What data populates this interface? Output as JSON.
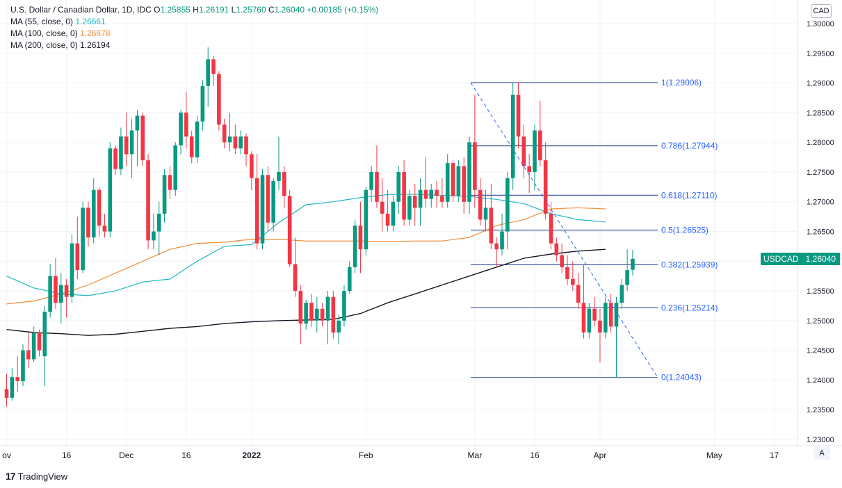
{
  "legend": {
    "title": "U.S. Dollar / Canadian Dollar, 1D, IDC",
    "o_label": "O",
    "o_value": "1.25855",
    "h_label": "H",
    "h_value": "1.26191",
    "l_label": "L",
    "l_value": "1.25760",
    "c_label": "C",
    "c_value": "1.26040",
    "change": "+0.00185 (+0.15%)",
    "ma55_label": "MA (55, close, 0)",
    "ma55_value": "1.26661",
    "ma100_label": "MA (100, close, 0)",
    "ma100_value": "1.26878",
    "ma200_label": "MA (200, close, 0)",
    "ma200_value": "1.26194"
  },
  "currency_button": "CAD",
  "auto_scale_button": "A",
  "brand": "TradingView",
  "price_tag": {
    "symbol": "USDCAD",
    "value": "1.26040"
  },
  "colors": {
    "up": "#089981",
    "down": "#f23645",
    "ma55": "#1cb5c0",
    "ma100": "#f28c35",
    "ma200": "#131722",
    "fib": "#2962ff",
    "fib_text": "#2962ff"
  },
  "chart_data": {
    "type": "candlestick",
    "symbol": "USDCAD",
    "interval": "1D",
    "ylim": [
      1.2285,
      1.3025
    ],
    "y_ticks": [
      "1.30000",
      "1.29500",
      "1.29000",
      "1.28500",
      "1.28000",
      "1.27500",
      "1.27000",
      "1.26500",
      "1.26000",
      "1.25500",
      "1.25000",
      "1.24500",
      "1.24000",
      "1.23500",
      "1.23000"
    ],
    "x_ticks": [
      {
        "label": "ov",
        "index": 0
      },
      {
        "label": "16",
        "index": 11
      },
      {
        "label": "Dec",
        "index": 22
      },
      {
        "label": "16",
        "index": 33
      },
      {
        "label": "2022",
        "index": 45
      },
      {
        "label": "Feb",
        "index": 66
      },
      {
        "label": "Mar",
        "index": 86
      },
      {
        "label": "16",
        "index": 97
      },
      {
        "label": "Apr",
        "index": 109
      },
      {
        "label": "May",
        "index": 130
      },
      {
        "label": "17",
        "index": 141
      }
    ],
    "candles": [
      [
        1.2385,
        1.241,
        1.2355,
        1.237
      ],
      [
        1.237,
        1.242,
        1.2365,
        1.2405
      ],
      [
        1.2405,
        1.244,
        1.238,
        1.2398
      ],
      [
        1.2398,
        1.246,
        1.239,
        1.245
      ],
      [
        1.245,
        1.248,
        1.242,
        1.2435
      ],
      [
        1.2435,
        1.249,
        1.243,
        1.248
      ],
      [
        1.248,
        1.2485,
        1.244,
        1.245
      ],
      [
        1.244,
        1.2525,
        1.239,
        1.2515
      ],
      [
        1.2515,
        1.2595,
        1.2505,
        1.2575
      ],
      [
        1.2575,
        1.2605,
        1.252,
        1.253
      ],
      [
        1.253,
        1.258,
        1.2495,
        1.256
      ],
      [
        1.256,
        1.257,
        1.2505,
        1.254
      ],
      [
        1.254,
        1.2645,
        1.253,
        1.263
      ],
      [
        1.263,
        1.2675,
        1.257,
        1.2585
      ],
      [
        1.2585,
        1.27,
        1.258,
        1.269
      ],
      [
        1.269,
        1.27,
        1.2625,
        1.264
      ],
      [
        1.264,
        1.274,
        1.263,
        1.272
      ],
      [
        1.272,
        1.2725,
        1.264,
        1.266
      ],
      [
        1.266,
        1.268,
        1.264,
        1.265
      ],
      [
        1.265,
        1.28,
        1.264,
        1.279
      ],
      [
        1.279,
        1.2795,
        1.2745,
        1.2755
      ],
      [
        1.2755,
        1.2825,
        1.2745,
        1.281
      ],
      [
        1.281,
        1.285,
        1.276,
        1.278
      ],
      [
        1.278,
        1.284,
        1.274,
        1.282
      ],
      [
        1.282,
        1.2855,
        1.276,
        1.2845
      ],
      [
        1.2845,
        1.285,
        1.276,
        1.277
      ],
      [
        1.277,
        1.278,
        1.262,
        1.2635
      ],
      [
        1.2635,
        1.268,
        1.262,
        1.265
      ],
      [
        1.265,
        1.27,
        1.261,
        1.268
      ],
      [
        1.268,
        1.2755,
        1.2665,
        1.2745
      ],
      [
        1.2745,
        1.276,
        1.2705,
        1.272
      ],
      [
        1.272,
        1.28,
        1.271,
        1.2795
      ],
      [
        1.2795,
        1.2855,
        1.278,
        1.285
      ],
      [
        1.285,
        1.2885,
        1.279,
        1.281
      ],
      [
        1.281,
        1.282,
        1.2765,
        1.2775
      ],
      [
        1.2775,
        1.2845,
        1.2765,
        1.2835
      ],
      [
        1.2835,
        1.2905,
        1.282,
        1.2895
      ],
      [
        1.2895,
        1.296,
        1.286,
        1.294
      ],
      [
        1.294,
        1.2945,
        1.2895,
        1.2915
      ],
      [
        1.2915,
        1.292,
        1.282,
        1.283
      ],
      [
        1.283,
        1.284,
        1.279,
        1.28
      ],
      [
        1.28,
        1.285,
        1.2785,
        1.281
      ],
      [
        1.281,
        1.283,
        1.278,
        1.279
      ],
      [
        1.279,
        1.282,
        1.278,
        1.281
      ],
      [
        1.281,
        1.2815,
        1.276,
        1.278
      ],
      [
        1.278,
        1.2785,
        1.272,
        1.274
      ],
      [
        1.274,
        1.278,
        1.262,
        1.263
      ],
      [
        1.263,
        1.2755,
        1.262,
        1.2745
      ],
      [
        1.2745,
        1.276,
        1.265,
        1.2665
      ],
      [
        1.2665,
        1.274,
        1.265,
        1.2735
      ],
      [
        1.2735,
        1.281,
        1.272,
        1.275
      ],
      [
        1.275,
        1.276,
        1.269,
        1.271
      ],
      [
        1.271,
        1.272,
        1.259,
        1.2595
      ],
      [
        1.2595,
        1.264,
        1.254,
        1.255
      ],
      [
        1.255,
        1.256,
        1.246,
        1.2495
      ],
      [
        1.2495,
        1.2535,
        1.2485,
        1.253
      ],
      [
        1.253,
        1.2545,
        1.249,
        1.25
      ],
      [
        1.25,
        1.254,
        1.248,
        1.252
      ],
      [
        1.252,
        1.253,
        1.249,
        1.25
      ],
      [
        1.25,
        1.255,
        1.246,
        1.254
      ],
      [
        1.254,
        1.255,
        1.247,
        1.248
      ],
      [
        1.248,
        1.251,
        1.246,
        1.25
      ],
      [
        1.25,
        1.256,
        1.249,
        1.255
      ],
      [
        1.255,
        1.26,
        1.2545,
        1.259
      ],
      [
        1.259,
        1.267,
        1.258,
        1.266
      ],
      [
        1.266,
        1.27,
        1.258,
        1.262
      ],
      [
        1.262,
        1.2725,
        1.261,
        1.272
      ],
      [
        1.272,
        1.276,
        1.27,
        1.275
      ],
      [
        1.275,
        1.2795,
        1.269,
        1.27
      ],
      [
        1.27,
        1.274,
        1.265,
        1.268
      ],
      [
        1.268,
        1.272,
        1.265,
        1.266
      ],
      [
        1.266,
        1.271,
        1.265,
        1.27
      ],
      [
        1.27,
        1.276,
        1.268,
        1.275
      ],
      [
        1.275,
        1.277,
        1.266,
        1.267
      ],
      [
        1.267,
        1.272,
        1.266,
        1.271
      ],
      [
        1.271,
        1.273,
        1.266,
        1.269
      ],
      [
        1.269,
        1.274,
        1.266,
        1.272
      ],
      [
        1.272,
        1.2775,
        1.269,
        1.2705
      ],
      [
        1.2705,
        1.273,
        1.269,
        1.272
      ],
      [
        1.272,
        1.2735,
        1.269,
        1.271
      ],
      [
        1.271,
        1.274,
        1.269,
        1.27
      ],
      [
        1.27,
        1.278,
        1.269,
        1.2765
      ],
      [
        1.2765,
        1.277,
        1.27,
        1.271
      ],
      [
        1.271,
        1.277,
        1.27,
        1.276
      ],
      [
        1.276,
        1.2775,
        1.268,
        1.27
      ],
      [
        1.27,
        1.281,
        1.268,
        1.28
      ],
      [
        1.28,
        1.288,
        1.269,
        1.272
      ],
      [
        1.272,
        1.274,
        1.266,
        1.267
      ],
      [
        1.267,
        1.272,
        1.265,
        1.269
      ],
      [
        1.269,
        1.273,
        1.262,
        1.263
      ],
      [
        1.263,
        1.264,
        1.259,
        1.262
      ],
      [
        1.262,
        1.268,
        1.261,
        1.265
      ],
      [
        1.265,
        1.275,
        1.262,
        1.274
      ],
      [
        1.274,
        1.29,
        1.272,
        1.288
      ],
      [
        1.288,
        1.2901,
        1.279,
        1.281
      ],
      [
        1.281,
        1.283,
        1.274,
        1.276
      ],
      [
        1.276,
        1.278,
        1.2715,
        1.275
      ],
      [
        1.275,
        1.283,
        1.272,
        1.282
      ],
      [
        1.282,
        1.287,
        1.276,
        1.277
      ],
      [
        1.277,
        1.28,
        1.267,
        1.268
      ],
      [
        1.268,
        1.27,
        1.262,
        1.263
      ],
      [
        1.263,
        1.264,
        1.26,
        1.261
      ],
      [
        1.261,
        1.263,
        1.258,
        1.259
      ],
      [
        1.259,
        1.261,
        1.256,
        1.257
      ],
      [
        1.257,
        1.26,
        1.255,
        1.256
      ],
      [
        1.256,
        1.258,
        1.252,
        1.253
      ],
      [
        1.253,
        1.2595,
        1.247,
        1.248
      ],
      [
        1.248,
        1.253,
        1.247,
        1.252
      ],
      [
        1.252,
        1.254,
        1.249,
        1.25
      ],
      [
        1.25,
        1.252,
        1.243,
        1.248
      ],
      [
        1.248,
        1.254,
        1.247,
        1.253
      ],
      [
        1.253,
        1.2545,
        1.248,
        1.249
      ],
      [
        1.249,
        1.254,
        1.2405,
        1.253
      ],
      [
        1.253,
        1.257,
        1.252,
        1.256
      ],
      [
        1.256,
        1.262,
        1.255,
        1.2585
      ],
      [
        1.25855,
        1.26191,
        1.2576,
        1.2604
      ]
    ],
    "moving_averages": [
      {
        "name": "MA (55, close, 0)",
        "color": "#1cb5c0",
        "values": [
          [
            0,
            1.2575
          ],
          [
            5,
            1.2555
          ],
          [
            10,
            1.2545
          ],
          [
            15,
            1.2542
          ],
          [
            20,
            1.255
          ],
          [
            25,
            1.2565
          ],
          [
            30,
            1.257
          ],
          [
            35,
            1.26
          ],
          [
            40,
            1.2625
          ],
          [
            45,
            1.2628
          ],
          [
            50,
            1.2665
          ],
          [
            55,
            1.2695
          ],
          [
            60,
            1.27
          ],
          [
            65,
            1.2707
          ],
          [
            70,
            1.2712
          ],
          [
            75,
            1.2713
          ],
          [
            80,
            1.2711
          ],
          [
            85,
            1.2709
          ],
          [
            90,
            1.2704
          ],
          [
            95,
            1.2697
          ],
          [
            100,
            1.268
          ],
          [
            105,
            1.267
          ],
          [
            110,
            1.2666
          ]
        ]
      },
      {
        "name": "MA (100, close, 0)",
        "color": "#f28c35",
        "values": [
          [
            0,
            1.2528
          ],
          [
            5,
            1.2533
          ],
          [
            10,
            1.2545
          ],
          [
            15,
            1.256
          ],
          [
            20,
            1.258
          ],
          [
            25,
            1.26
          ],
          [
            30,
            1.262
          ],
          [
            35,
            1.263
          ],
          [
            40,
            1.2632
          ],
          [
            45,
            1.2637
          ],
          [
            50,
            1.2637
          ],
          [
            55,
            1.2634
          ],
          [
            60,
            1.2634
          ],
          [
            65,
            1.2634
          ],
          [
            70,
            1.2633
          ],
          [
            75,
            1.2634
          ],
          [
            80,
            1.2634
          ],
          [
            85,
            1.264
          ],
          [
            90,
            1.266
          ],
          [
            95,
            1.267
          ],
          [
            100,
            1.2688
          ],
          [
            105,
            1.269
          ],
          [
            110,
            1.2688
          ]
        ]
      },
      {
        "name": "MA (200, close, 0)",
        "color": "#131722",
        "values": [
          [
            0,
            1.2485
          ],
          [
            5,
            1.248
          ],
          [
            10,
            1.2478
          ],
          [
            15,
            1.2475
          ],
          [
            20,
            1.2477
          ],
          [
            25,
            1.2482
          ],
          [
            30,
            1.2487
          ],
          [
            35,
            1.249
          ],
          [
            40,
            1.2495
          ],
          [
            45,
            1.2498
          ],
          [
            50,
            1.25
          ],
          [
            55,
            1.2501
          ],
          [
            60,
            1.2502
          ],
          [
            65,
            1.2512
          ],
          [
            70,
            1.253
          ],
          [
            75,
            1.2545
          ],
          [
            80,
            1.256
          ],
          [
            85,
            1.2575
          ],
          [
            90,
            1.259
          ],
          [
            95,
            1.2605
          ],
          [
            100,
            1.2612
          ],
          [
            105,
            1.2617
          ],
          [
            110,
            1.262
          ]
        ]
      }
    ],
    "fibonacci": [
      {
        "label": "1(1.29006)",
        "value": 1.29006
      },
      {
        "label": "0.786(1.27944)",
        "value": 1.27944
      },
      {
        "label": "0.618(1.27110)",
        "value": 1.2711
      },
      {
        "label": "0.5(1.26525)",
        "value": 1.26525
      },
      {
        "label": "0.382(1.25939)",
        "value": 1.25939
      },
      {
        "label": "0.236(1.25214)",
        "value": 1.25214
      },
      {
        "label": "0(1.24043)",
        "value": 1.24043
      }
    ]
  }
}
